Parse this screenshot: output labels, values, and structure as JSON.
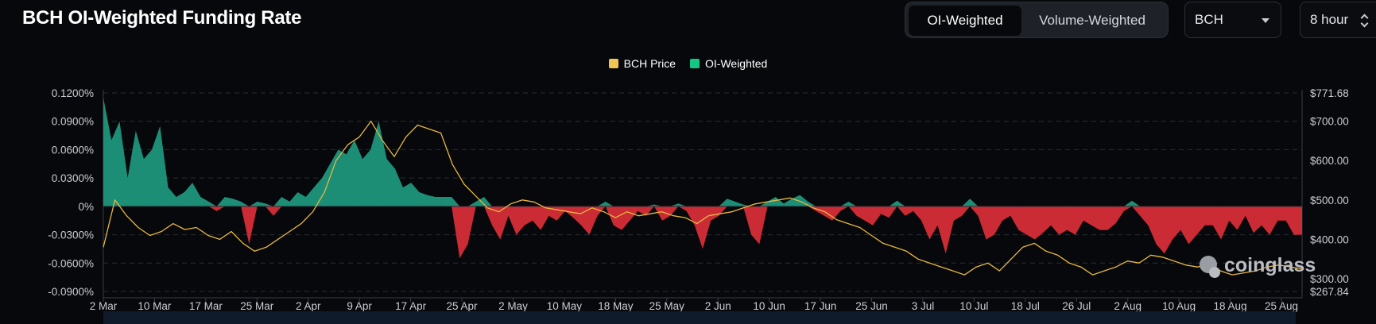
{
  "page": {
    "title": "BCH OI-Weighted Funding Rate"
  },
  "toggle": {
    "options": [
      "OI-Weighted",
      "Volume-Weighted"
    ],
    "selected": "OI-Weighted"
  },
  "coin_select": {
    "value": "BCH"
  },
  "interval_select": {
    "value": "8 hour"
  },
  "watermark": {
    "text": "coinglass"
  },
  "colors": {
    "background": "#07080b",
    "positive": "#1f9d82",
    "negative": "#e0303a",
    "price": "#e7b73f",
    "oi_legend": "#16c784",
    "grid": "#2a2d34"
  },
  "chart_data": {
    "type": "area",
    "title": "BCH OI-Weighted Funding Rate",
    "legend": [
      {
        "name": "BCH Price",
        "color": "#f3c454"
      },
      {
        "name": "OI-Weighted",
        "color": "#16c784"
      }
    ],
    "legend_position": "top-center",
    "grid": true,
    "x_ticks": [
      "2 Mar",
      "10 Mar",
      "17 Mar",
      "25 Mar",
      "2 Apr",
      "9 Apr",
      "17 Apr",
      "25 Apr",
      "2 May",
      "10 May",
      "18 May",
      "25 May",
      "2 Jun",
      "10 Jun",
      "17 Jun",
      "25 Jun",
      "3 Jul",
      "10 Jul",
      "18 Jul",
      "26 Jul",
      "2 Aug",
      "10 Aug",
      "18 Aug",
      "25 Aug"
    ],
    "y_left": {
      "ticks": [
        "0.1200%",
        "0.0900%",
        "0.0600%",
        "0.0300%",
        "0%",
        "-0.0300%",
        "-0.0600%",
        "-0.0900%"
      ],
      "tick_values": [
        0.12,
        0.09,
        0.06,
        0.03,
        0,
        -0.03,
        -0.06,
        -0.09
      ],
      "range": [
        -0.09,
        0.12
      ]
    },
    "y_right": {
      "ticks": [
        "$771.68",
        "$700.00",
        "$600.00",
        "$500.00",
        "$400.00",
        "$300.00",
        "$267.84"
      ],
      "tick_values": [
        771.68,
        700,
        600,
        500,
        400,
        300,
        267.84
      ],
      "range": [
        267.84,
        771.68
      ]
    },
    "series": [
      {
        "name": "OI-Weighted",
        "axis": "left",
        "unit": "%",
        "x_range": [
          "2 Mar",
          "29 Aug"
        ],
        "values": [
          0.115,
          0.07,
          0.09,
          0.03,
          0.08,
          0.05,
          0.06,
          0.085,
          0.02,
          0.01,
          0.015,
          0.025,
          0.01,
          0.005,
          -0.005,
          0.01,
          0.008,
          0.005,
          -0.04,
          0.005,
          0.003,
          -0.01,
          0.01,
          0.005,
          0.015,
          0.01,
          0.02,
          0.03,
          0.045,
          0.06,
          0.055,
          0.07,
          0.05,
          0.06,
          0.09,
          0.05,
          0.04,
          0.02,
          0.025,
          0.015,
          0.012,
          0.01,
          0.01,
          0.01,
          -0.055,
          -0.04,
          0.005,
          0.01,
          -0.02,
          -0.035,
          -0.01,
          -0.03,
          -0.02,
          -0.015,
          -0.025,
          -0.01,
          -0.015,
          -0.005,
          -0.012,
          -0.02,
          -0.03,
          -0.01,
          0.005,
          -0.02,
          -0.025,
          -0.015,
          -0.005,
          -0.01,
          0.002,
          -0.015,
          -0.01,
          0.003,
          -0.005,
          -0.02,
          -0.045,
          -0.015,
          -0.01,
          0.008,
          0.005,
          0.002,
          -0.03,
          -0.04,
          0.005,
          0.01,
          0.003,
          0.008,
          0.012,
          0.005,
          -0.005,
          -0.01,
          -0.015,
          -0.005,
          0.005,
          -0.01,
          -0.015,
          -0.02,
          -0.008,
          -0.012,
          0.006,
          -0.01,
          -0.005,
          -0.015,
          -0.035,
          -0.02,
          -0.05,
          -0.015,
          -0.01,
          0.008,
          -0.01,
          -0.035,
          -0.03,
          -0.015,
          -0.01,
          -0.025,
          -0.03,
          -0.035,
          -0.028,
          -0.02,
          -0.03,
          -0.025,
          -0.03,
          -0.015,
          -0.02,
          -0.025,
          -0.025,
          -0.018,
          -0.005,
          0.006,
          -0.01,
          -0.02,
          -0.04,
          -0.05,
          -0.035,
          -0.025,
          -0.04,
          -0.03,
          -0.02,
          -0.02,
          -0.035,
          -0.015,
          -0.025,
          -0.01,
          -0.028,
          -0.02,
          -0.03,
          -0.015,
          -0.015,
          -0.03,
          -0.03
        ]
      },
      {
        "name": "BCH Price",
        "axis": "right",
        "unit": "$",
        "x_range": [
          "2 Mar",
          "29 Aug"
        ],
        "values": [
          380,
          500,
          460,
          430,
          410,
          420,
          440,
          425,
          430,
          410,
          400,
          420,
          390,
          370,
          380,
          400,
          420,
          440,
          470,
          520,
          600,
          640,
          660,
          700,
          650,
          610,
          660,
          690,
          680,
          670,
          590,
          540,
          510,
          480,
          470,
          490,
          500,
          495,
          480,
          475,
          470,
          465,
          480,
          470,
          455,
          470,
          460,
          465,
          470,
          460,
          455,
          440,
          460,
          465,
          470,
          480,
          490,
          495,
          500,
          505,
          495,
          480,
          470,
          450,
          440,
          430,
          410,
          390,
          380,
          370,
          350,
          340,
          330,
          320,
          310,
          330,
          340,
          320,
          350,
          380,
          390,
          370,
          360,
          340,
          330,
          310,
          320,
          330,
          345,
          340,
          360,
          355,
          345,
          335,
          330,
          335,
          320,
          310,
          315,
          320,
          330,
          335,
          330,
          325
        ]
      }
    ]
  }
}
